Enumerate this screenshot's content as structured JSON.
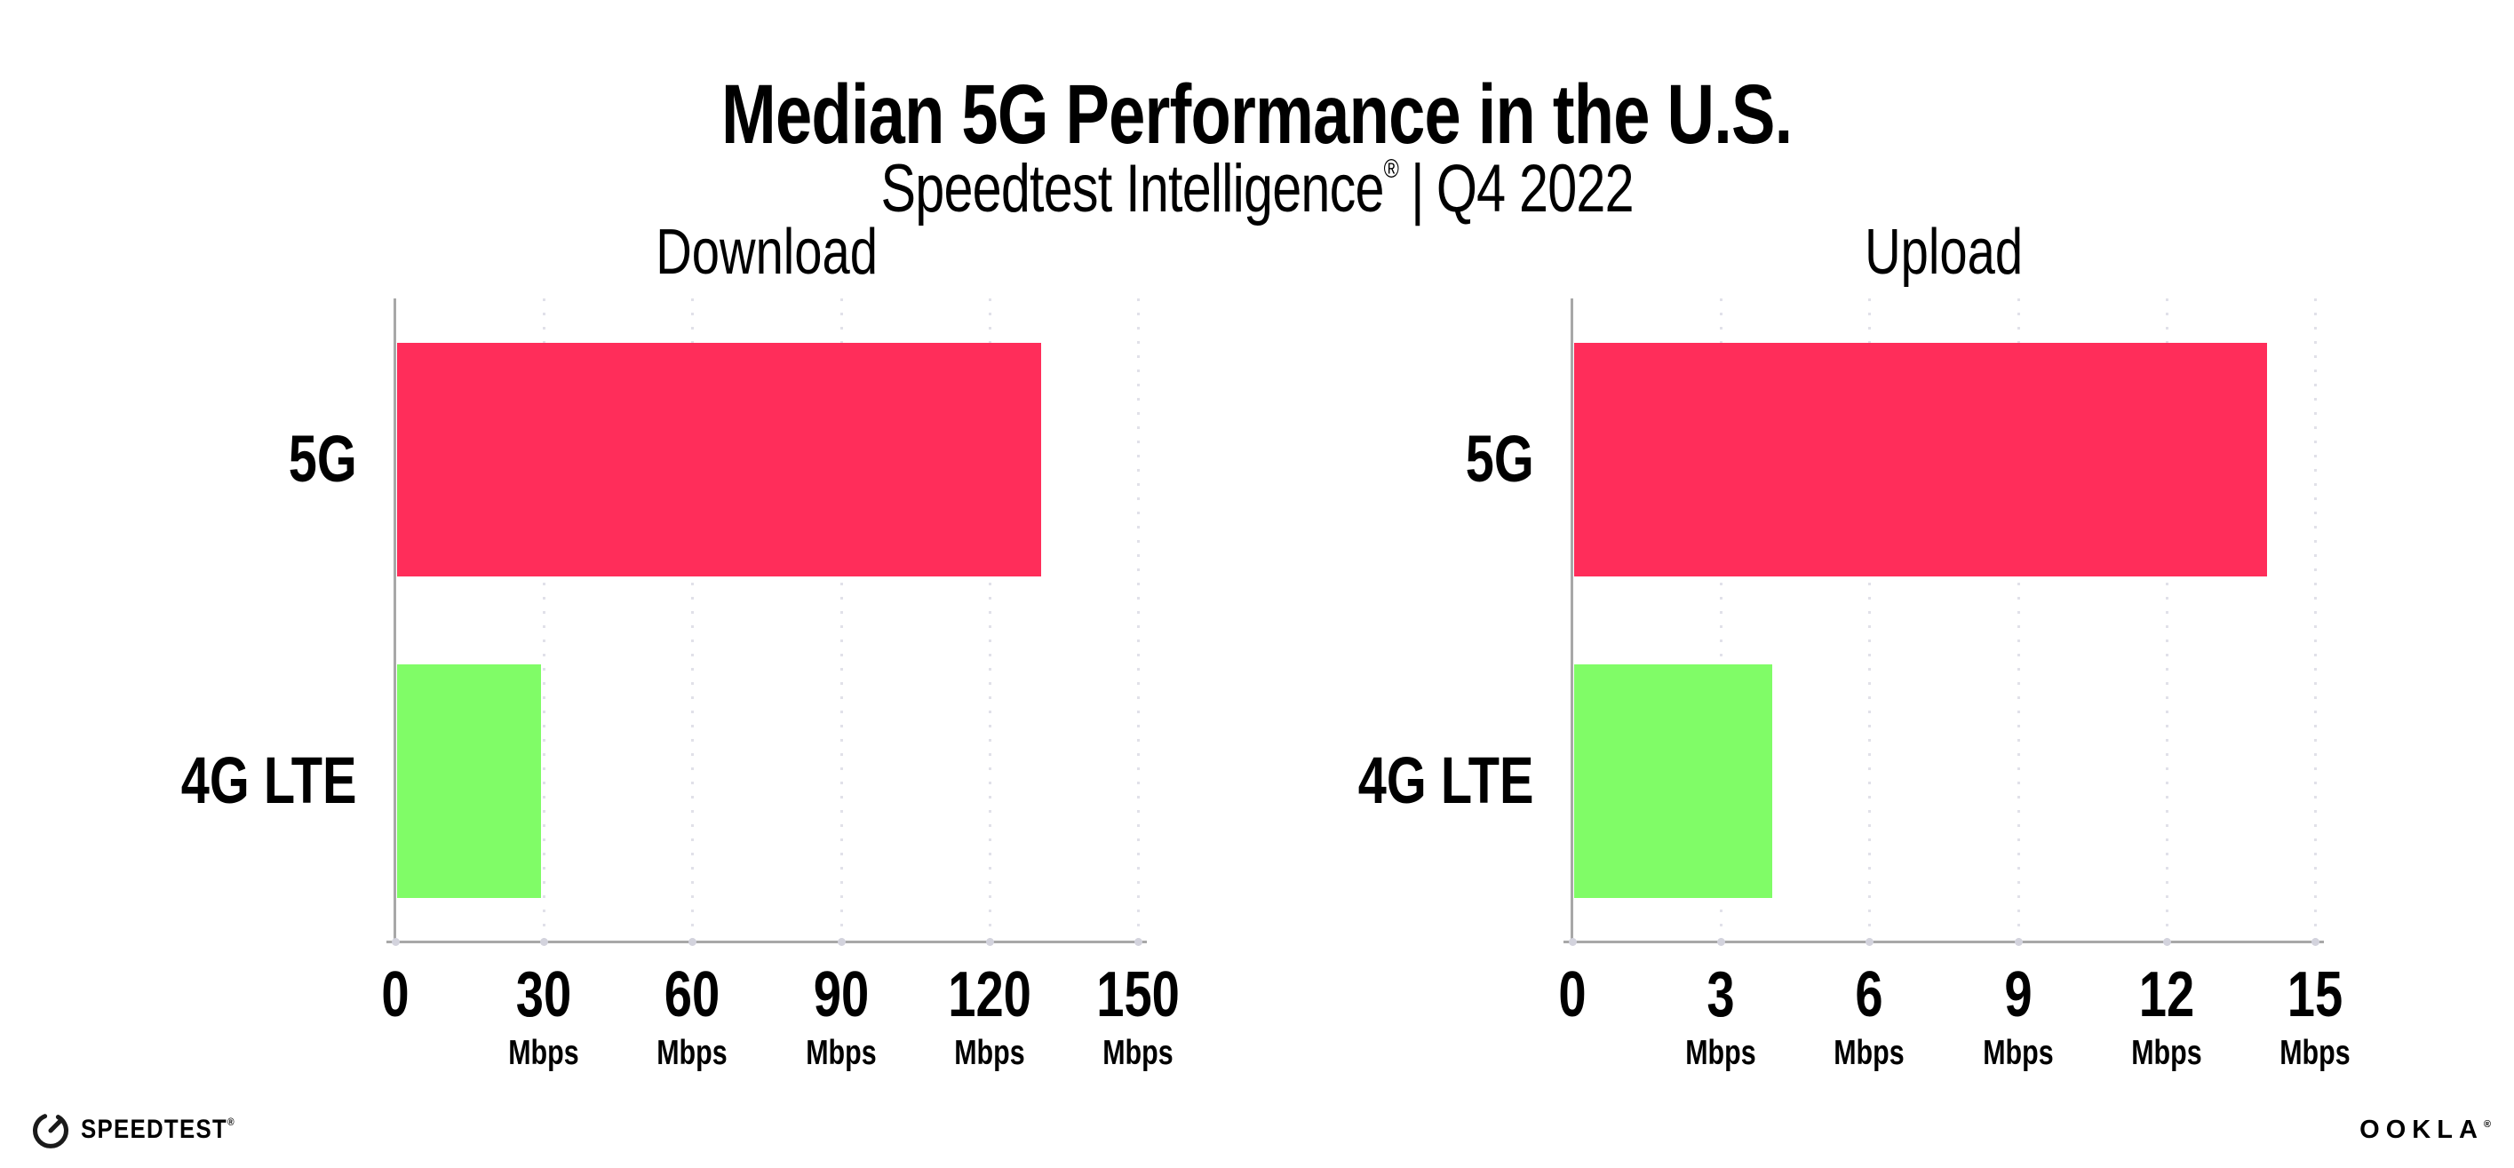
{
  "header": {
    "title": "Median 5G Performance in the U.S.",
    "subtitle": {
      "brand": "Speedtest Intelligence",
      "registered_mark": "®",
      "divider": "|",
      "period": "Q4 2022"
    }
  },
  "chart_data": [
    {
      "type": "bar",
      "orientation": "horizontal",
      "title": "Download",
      "categories": [
        "5G",
        "4G LTE"
      ],
      "values": [
        130,
        29
      ],
      "unit": "Mbps",
      "xlim": [
        0,
        150
      ],
      "xticks": [
        0,
        30,
        60,
        90,
        120,
        150
      ],
      "tick_unit_label": "Mbps",
      "bar_colors": [
        "#ff2d5a",
        "#80fc67"
      ],
      "grid": "vertical-dotted-gridlines",
      "legend": "none"
    },
    {
      "type": "bar",
      "orientation": "horizontal",
      "title": "Upload",
      "categories": [
        "5G",
        "4G LTE"
      ],
      "values": [
        14,
        4
      ],
      "unit": "Mbps",
      "xlim": [
        0,
        15
      ],
      "xticks": [
        0,
        3,
        6,
        9,
        12,
        15
      ],
      "tick_unit_label": "Mbps",
      "bar_colors": [
        "#ff2d5a",
        "#80fc67"
      ],
      "grid": "vertical-dotted-gridlines",
      "legend": "none"
    }
  ],
  "footer": {
    "speedtest_logo_text": "SPEEDTEST",
    "speedtest_trademark": "®",
    "ookla_logo_text": "OOKLA",
    "ookla_trademark": "®"
  },
  "colors": {
    "bar_5g": "#ff2d5a",
    "bar_4g_lte": "#80fc67",
    "axis_line": "#a8a8a8",
    "gridline": "#e1e1e9",
    "text": "#000000",
    "background": "#ffffff"
  }
}
